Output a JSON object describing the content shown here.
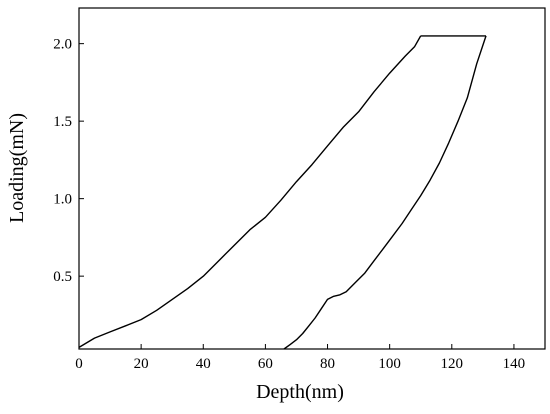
{
  "chart_data": {
    "type": "line",
    "title": "",
    "xlabel": "Depth(nm)",
    "ylabel": "Loading(mN)",
    "xlim": [
      0,
      150
    ],
    "ylim": [
      0.03,
      2.23
    ],
    "x_ticks": [
      0,
      20,
      40,
      60,
      80,
      100,
      120,
      140
    ],
    "y_ticks": [
      0.5,
      1.0,
      1.5,
      2.0
    ],
    "x_tick_labels": [
      "0",
      "20",
      "40",
      "60",
      "80",
      "100",
      "120",
      "140"
    ],
    "y_tick_labels": [
      "0.5",
      "1.0",
      "1.5",
      "2.0"
    ],
    "grid": false,
    "legend": "none",
    "series": [
      {
        "segment": "loading",
        "color": "#000000",
        "x": [
          0,
          5,
          10,
          15,
          20,
          25,
          30,
          35,
          40,
          45,
          50,
          55,
          60,
          65,
          70,
          75,
          80,
          85,
          90,
          95,
          100,
          105,
          108,
          110
        ],
        "y": [
          0.04,
          0.1,
          0.14,
          0.18,
          0.22,
          0.28,
          0.35,
          0.42,
          0.5,
          0.6,
          0.7,
          0.8,
          0.88,
          0.99,
          1.11,
          1.22,
          1.34,
          1.46,
          1.56,
          1.69,
          1.81,
          1.92,
          1.98,
          2.05
        ]
      },
      {
        "segment": "hold",
        "color": "#000000",
        "x": [
          110,
          131
        ],
        "y": [
          2.05,
          2.05
        ]
      },
      {
        "segment": "unloading",
        "color": "#000000",
        "x": [
          131,
          128,
          125,
          122,
          119,
          116,
          113,
          110,
          107,
          104,
          101,
          98,
          95,
          92,
          89,
          86,
          84,
          82,
          80,
          78,
          76,
          74,
          72,
          70,
          68,
          66
        ],
        "y": [
          2.05,
          1.87,
          1.65,
          1.5,
          1.36,
          1.23,
          1.12,
          1.02,
          0.93,
          0.84,
          0.76,
          0.68,
          0.6,
          0.52,
          0.46,
          0.4,
          0.38,
          0.37,
          0.35,
          0.29,
          0.23,
          0.18,
          0.13,
          0.09,
          0.06,
          0.03
        ]
      }
    ]
  }
}
